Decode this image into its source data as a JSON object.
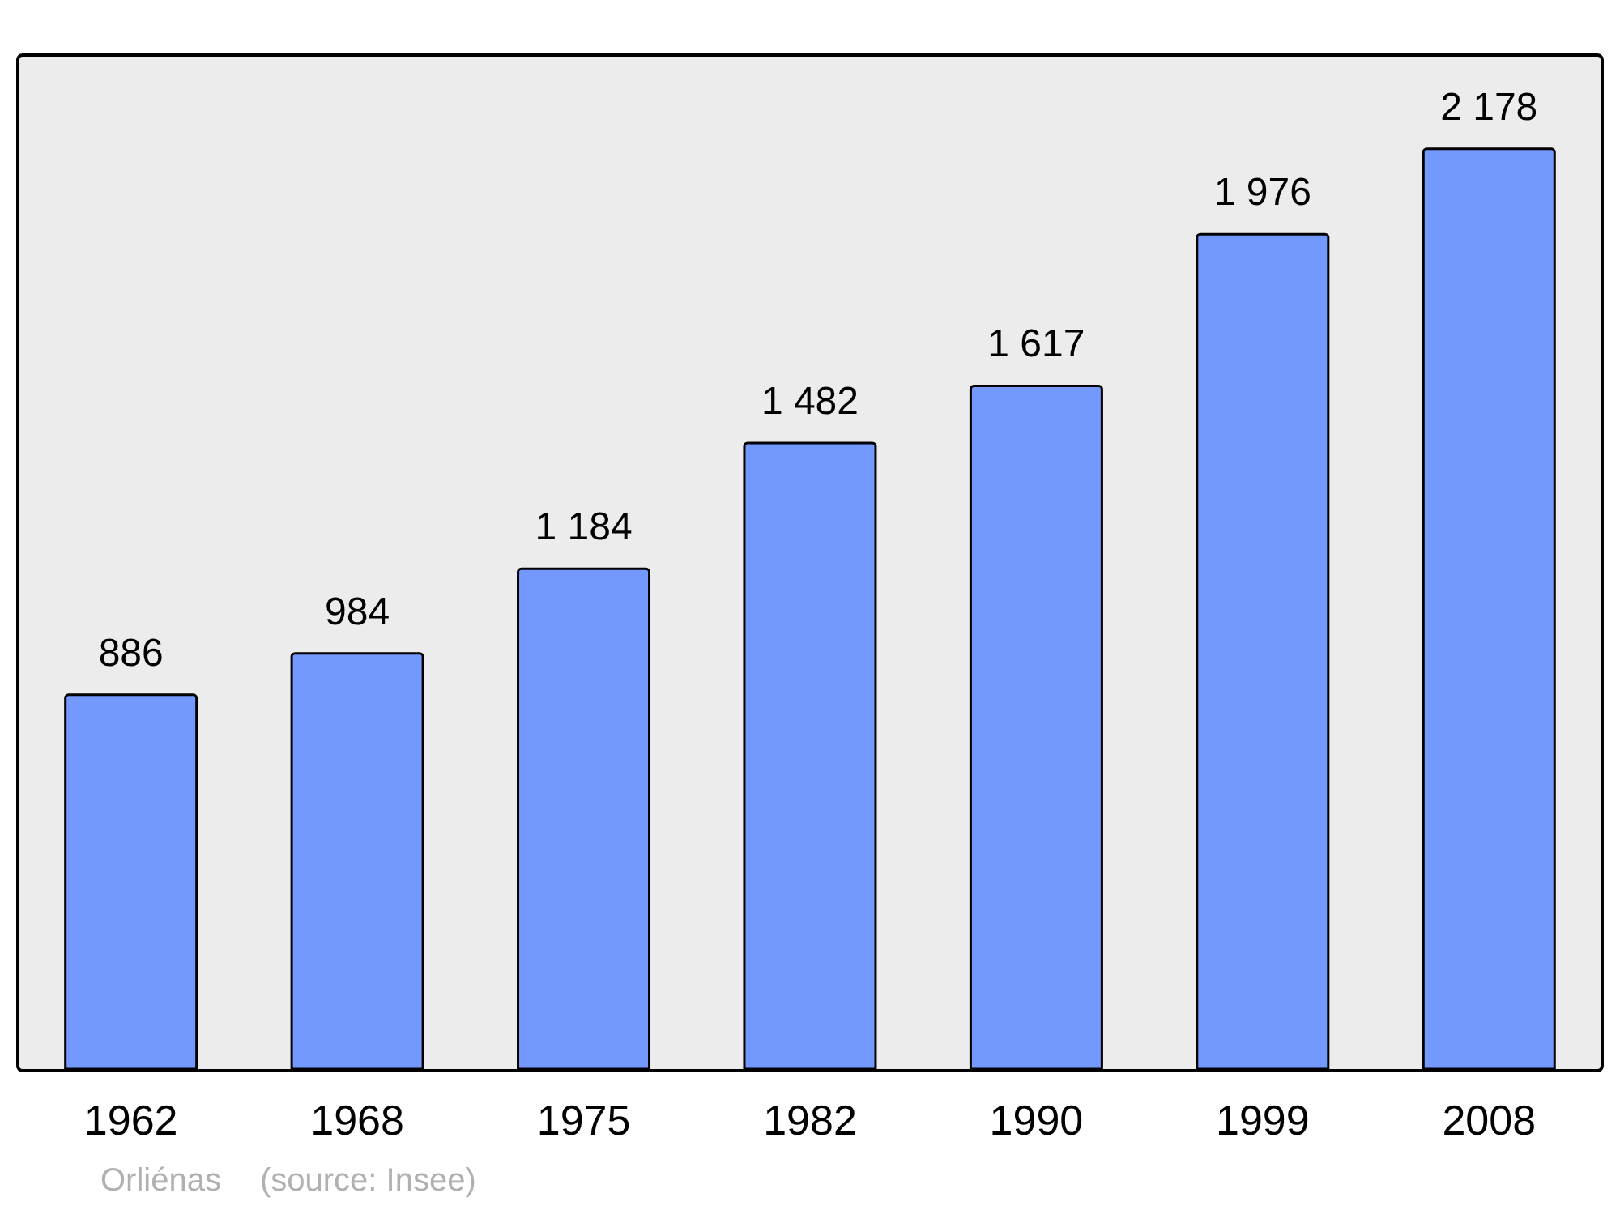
{
  "chart_data": {
    "type": "bar",
    "categories": [
      "1962",
      "1968",
      "1975",
      "1982",
      "1990",
      "1999",
      "2008"
    ],
    "values": [
      886,
      984,
      1184,
      1482,
      1617,
      1976,
      2178
    ],
    "value_labels": [
      "886",
      "984",
      "1 184",
      "1 482",
      "1 617",
      "1 976",
      "2 178"
    ],
    "color": "#7399ff",
    "ylim": [
      0,
      2400
    ],
    "tick_labels": "x",
    "grid": false,
    "annotations": [
      "Orliénas",
      "(source: Insee)"
    ]
  }
}
